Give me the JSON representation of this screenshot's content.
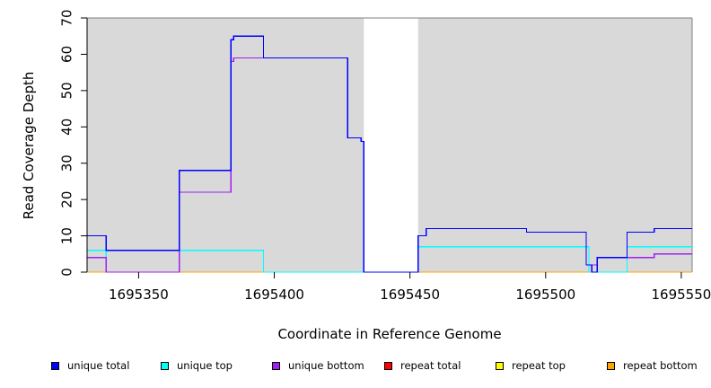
{
  "chart_data": {
    "type": "line",
    "title": "",
    "xlabel": "Coordinate in Reference Genome",
    "ylabel": "Read Coverage Depth",
    "xlim": [
      1695331,
      1695554
    ],
    "ylim": [
      0,
      70
    ],
    "x_ticks": [
      1695350,
      1695400,
      1695450,
      1695500,
      1695550
    ],
    "x_tick_labels": [
      "1695350",
      "1695400",
      "1695450",
      "1695500",
      "1695550"
    ],
    "y_ticks": [
      0,
      10,
      20,
      30,
      40,
      50,
      60,
      70
    ],
    "y_tick_labels": [
      "0",
      "10",
      "20",
      "30",
      "40",
      "50",
      "60",
      "70"
    ],
    "plot_background": "#d9d9d9",
    "unshaded_x_range": [
      1695433,
      1695453
    ],
    "series": [
      {
        "name": "unique total",
        "color": "#0000ff",
        "x": [
          1695331,
          1695338,
          1695365,
          1695384,
          1695385,
          1695396,
          1695427,
          1695432,
          1695433,
          1695453,
          1695456,
          1695493,
          1695515,
          1695517,
          1695519,
          1695530,
          1695540,
          1695554
        ],
        "y": [
          10,
          6,
          28,
          64,
          65,
          59,
          37,
          36,
          0,
          10,
          12,
          11,
          2,
          0,
          4,
          11,
          12,
          12
        ]
      },
      {
        "name": "unique top",
        "color": "#00ffff",
        "x": [
          1695331,
          1695338,
          1695365,
          1695396,
          1695453,
          1695516,
          1695530,
          1695554
        ],
        "y": [
          6,
          0,
          6,
          0,
          7,
          0,
          7,
          7
        ]
      },
      {
        "name": "unique bottom",
        "color": "#a020f0",
        "x": [
          1695331,
          1695338,
          1695365,
          1695384,
          1695385,
          1695396,
          1695427,
          1695432,
          1695433,
          1695453,
          1695456,
          1695493,
          1695515,
          1695519,
          1695540,
          1695554
        ],
        "y": [
          4,
          0,
          22,
          58,
          59,
          59,
          37,
          36,
          0,
          10,
          12,
          11,
          2,
          4,
          5,
          5
        ]
      },
      {
        "name": "repeat total",
        "color": "#ff0000",
        "x": [
          1695331,
          1695554
        ],
        "y": [
          0,
          0
        ]
      },
      {
        "name": "repeat top",
        "color": "#ffff00",
        "x": [
          1695331,
          1695554
        ],
        "y": [
          0,
          0
        ]
      },
      {
        "name": "repeat bottom",
        "color": "#ffa500",
        "x": [
          1695331,
          1695554
        ],
        "y": [
          0,
          0
        ]
      }
    ],
    "legend": {
      "position": "bottom",
      "items": [
        {
          "label": "unique total",
          "color": "#0000ff"
        },
        {
          "label": "unique top",
          "color": "#00ffff"
        },
        {
          "label": "unique bottom",
          "color": "#a020f0"
        },
        {
          "label": "repeat total",
          "color": "#ff0000"
        },
        {
          "label": "repeat top",
          "color": "#ffff00"
        },
        {
          "label": "repeat bottom",
          "color": "#ffa500"
        }
      ]
    }
  }
}
